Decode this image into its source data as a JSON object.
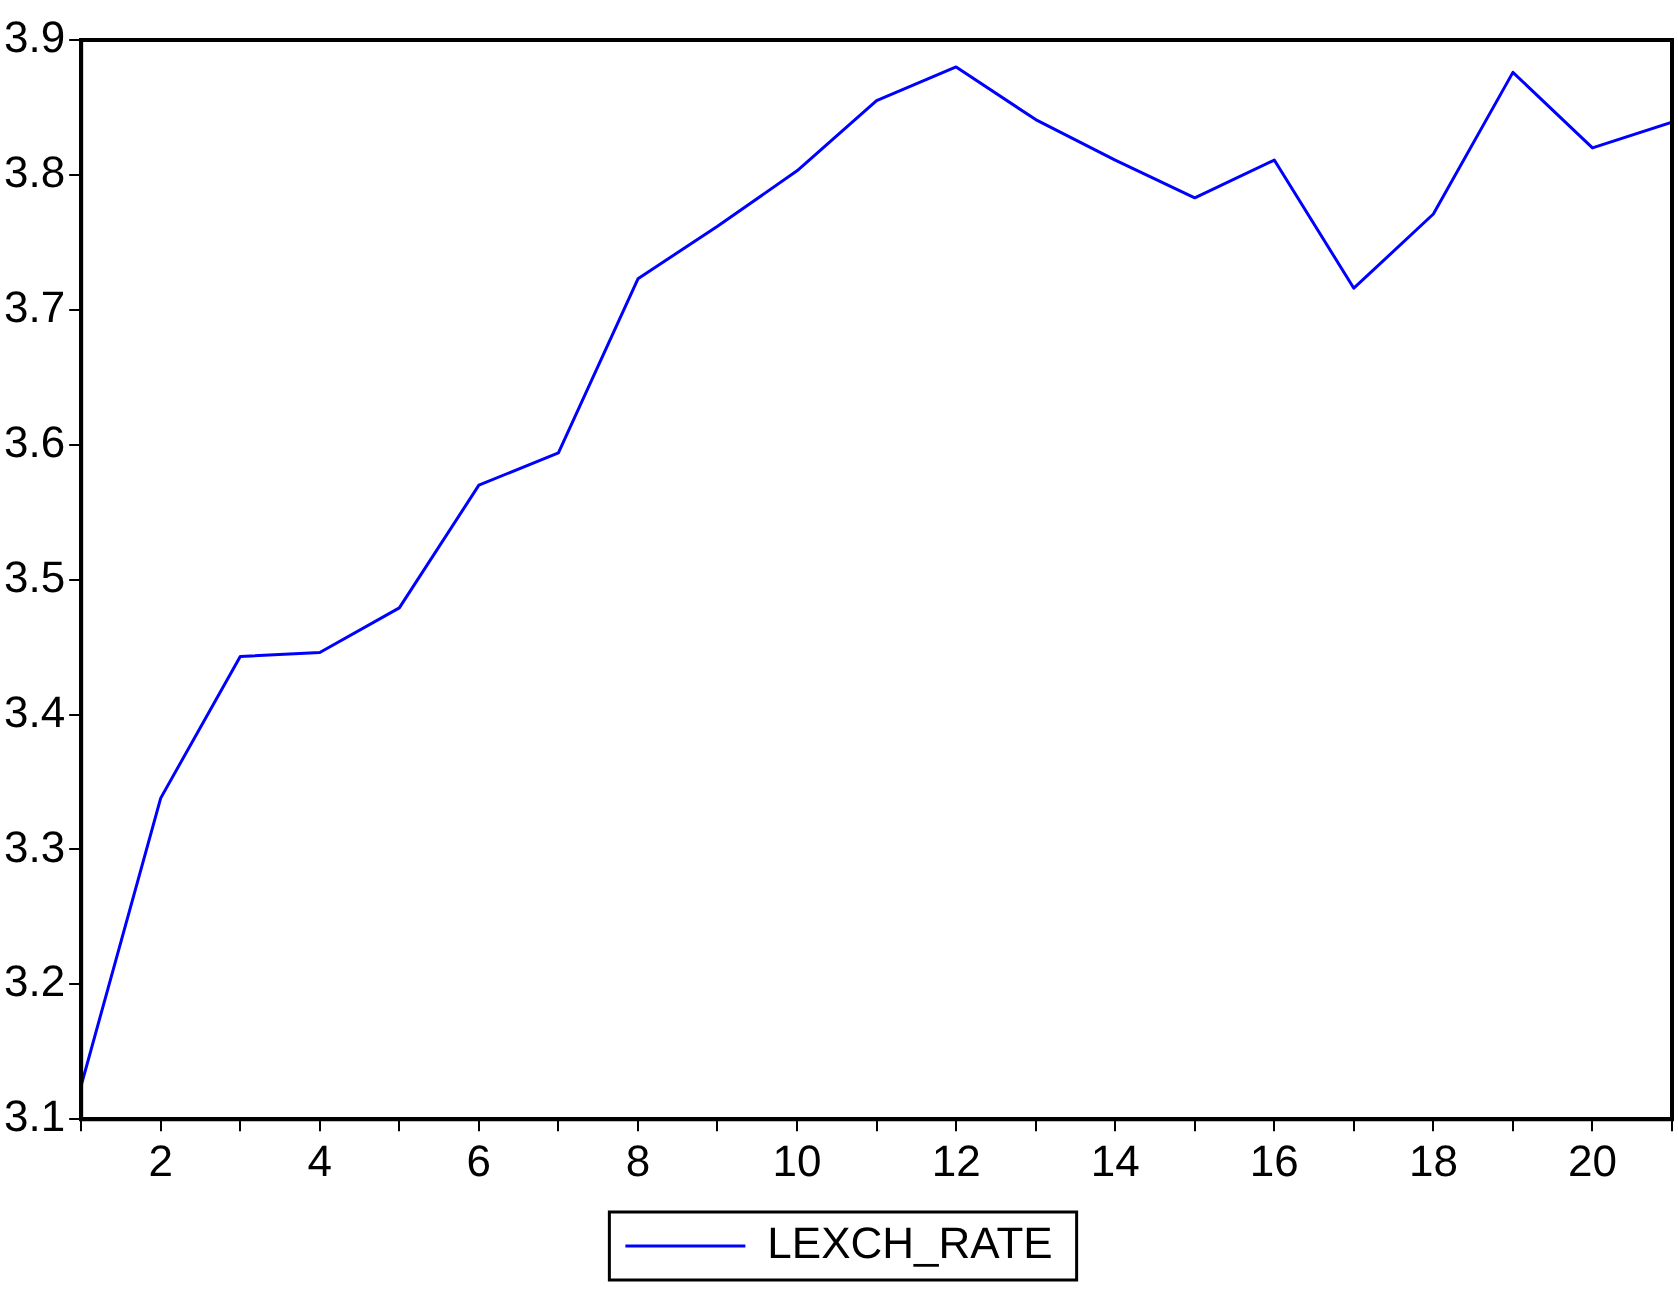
{
  "chart_data": {
    "type": "line",
    "x": [
      1,
      2,
      3,
      4,
      5,
      6,
      7,
      8,
      9,
      10,
      11,
      12,
      13,
      14,
      15,
      16,
      17,
      18,
      19,
      20,
      21
    ],
    "series": [
      {
        "name": "LEXCH_RATE",
        "color": "#0000ff",
        "values": [
          3.125,
          3.338,
          3.443,
          3.446,
          3.479,
          3.57,
          3.594,
          3.723,
          3.762,
          3.803,
          3.855,
          3.88,
          3.841,
          3.811,
          3.783,
          3.811,
          3.716,
          3.771,
          3.876,
          3.82,
          3.839
        ]
      }
    ],
    "xlim": [
      1,
      21
    ],
    "xticks": [
      {
        "value": 1,
        "label": null
      },
      2,
      {
        "value": 3,
        "label": null
      },
      4,
      {
        "value": 5,
        "label": null
      },
      6,
      {
        "value": 7,
        "label": null
      },
      8,
      {
        "value": 9,
        "label": null
      },
      10,
      {
        "value": 11,
        "label": null
      },
      12,
      {
        "value": 13,
        "label": null
      },
      14,
      {
        "value": 15,
        "label": null
      },
      16,
      {
        "value": 17,
        "label": null
      },
      18,
      {
        "value": 19,
        "label": null
      },
      20,
      {
        "value": 21,
        "label": null
      }
    ],
    "ylim": [
      3.1,
      3.9
    ],
    "yticks": [
      3.1,
      3.2,
      3.3,
      3.4,
      3.5,
      3.6,
      3.7,
      3.8,
      3.9
    ],
    "grid": false,
    "legend": "bottom",
    "marker": "none",
    "line_style": "solid"
  }
}
